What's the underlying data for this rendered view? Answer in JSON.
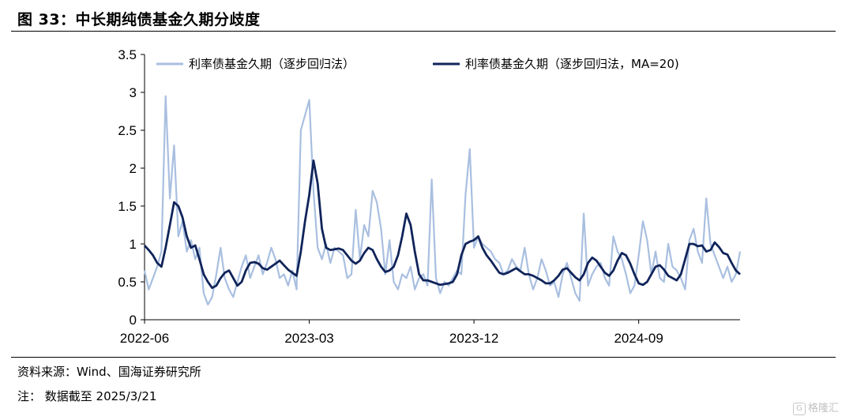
{
  "title": "图 33：中长期纯债基金久期分歧度",
  "source": "资料来源：Wind、国海证券研究所",
  "note": "注： 数据截至 2025/3/21",
  "watermark": "格隆汇",
  "watermark_icon": "G",
  "chart_data": {
    "type": "line",
    "title": "",
    "xlabel": "",
    "ylabel": "",
    "ylim": [
      0,
      3.5
    ],
    "yticks": [
      "0",
      "0.5",
      "1",
      "1.5",
      "2",
      "2.5",
      "3",
      "3.5"
    ],
    "xtick_labels": [
      "2022-06",
      "2023-03",
      "2023-12",
      "2024-09"
    ],
    "xtick_index": [
      0,
      39,
      78,
      117
    ],
    "colors": {
      "raw": "#a9bfe0",
      "ma": "#10245a"
    },
    "series": [
      {
        "name": "利率债基金久期（逐步回归法）",
        "values": [
          0.65,
          0.4,
          0.55,
          0.7,
          0.9,
          2.95,
          1.6,
          2.3,
          1.1,
          1.3,
          0.9,
          1.05,
          0.8,
          0.95,
          0.35,
          0.2,
          0.3,
          0.6,
          0.95,
          0.55,
          0.4,
          0.3,
          0.5,
          0.7,
          0.85,
          0.55,
          0.7,
          0.85,
          0.6,
          0.75,
          0.95,
          0.8,
          0.55,
          0.6,
          0.45,
          0.65,
          0.4,
          2.5,
          2.7,
          2.9,
          1.7,
          0.95,
          0.8,
          1.0,
          0.75,
          0.95,
          0.9,
          0.85,
          0.55,
          0.6,
          1.45,
          0.8,
          1.25,
          1.1,
          1.7,
          1.55,
          1.2,
          0.6,
          1.05,
          0.5,
          0.4,
          0.6,
          0.55,
          0.7,
          0.4,
          0.55,
          0.6,
          0.45,
          1.85,
          0.55,
          0.35,
          0.5,
          0.45,
          0.55,
          0.65,
          0.6,
          1.65,
          2.25,
          0.95,
          1.1,
          1.0,
          0.95,
          0.9,
          0.8,
          0.75,
          0.6,
          0.65,
          0.8,
          0.7,
          0.65,
          0.95,
          0.6,
          0.4,
          0.55,
          0.8,
          0.65,
          0.45,
          0.5,
          0.3,
          0.6,
          0.75,
          0.55,
          0.35,
          0.25,
          1.4,
          0.45,
          0.6,
          0.7,
          0.75,
          0.55,
          0.45,
          1.1,
          0.9,
          0.8,
          0.6,
          0.35,
          0.45,
          0.85,
          1.3,
          1.05,
          0.6,
          0.9,
          0.55,
          0.5,
          1.0,
          0.7,
          0.65,
          0.55,
          0.4,
          1.05,
          1.2,
          0.9,
          0.75,
          1.6,
          1.0,
          0.85,
          0.7,
          0.55,
          0.7,
          0.5,
          0.6,
          0.9
        ]
      },
      {
        "name": "利率债基金久期（逐步回归法，MA=20)",
        "values": [
          0.98,
          0.92,
          0.85,
          0.75,
          0.7,
          0.95,
          1.25,
          1.55,
          1.5,
          1.35,
          1.1,
          0.95,
          0.98,
          0.8,
          0.6,
          0.5,
          0.42,
          0.45,
          0.55,
          0.62,
          0.65,
          0.55,
          0.45,
          0.5,
          0.65,
          0.75,
          0.76,
          0.74,
          0.68,
          0.66,
          0.7,
          0.74,
          0.78,
          0.72,
          0.66,
          0.62,
          0.58,
          0.9,
          1.3,
          1.65,
          2.1,
          1.8,
          1.2,
          0.95,
          0.92,
          0.93,
          0.94,
          0.92,
          0.85,
          0.78,
          0.74,
          0.78,
          0.88,
          0.95,
          0.92,
          0.8,
          0.7,
          0.63,
          0.65,
          0.7,
          0.85,
          1.1,
          1.4,
          1.25,
          0.9,
          0.6,
          0.52,
          0.52,
          0.5,
          0.48,
          0.46,
          0.47,
          0.48,
          0.5,
          0.6,
          0.85,
          1.0,
          1.03,
          1.05,
          1.1,
          0.95,
          0.85,
          0.78,
          0.7,
          0.62,
          0.6,
          0.62,
          0.65,
          0.68,
          0.64,
          0.6,
          0.6,
          0.58,
          0.55,
          0.52,
          0.48,
          0.48,
          0.52,
          0.58,
          0.66,
          0.68,
          0.62,
          0.56,
          0.52,
          0.6,
          0.75,
          0.82,
          0.78,
          0.7,
          0.62,
          0.58,
          0.65,
          0.78,
          0.88,
          0.85,
          0.74,
          0.6,
          0.48,
          0.46,
          0.5,
          0.6,
          0.7,
          0.72,
          0.66,
          0.58,
          0.55,
          0.52,
          0.6,
          0.8,
          1.0,
          1.0,
          0.97,
          0.98,
          0.9,
          0.92,
          1.02,
          0.96,
          0.88,
          0.86,
          0.75,
          0.65,
          0.6
        ]
      }
    ]
  }
}
